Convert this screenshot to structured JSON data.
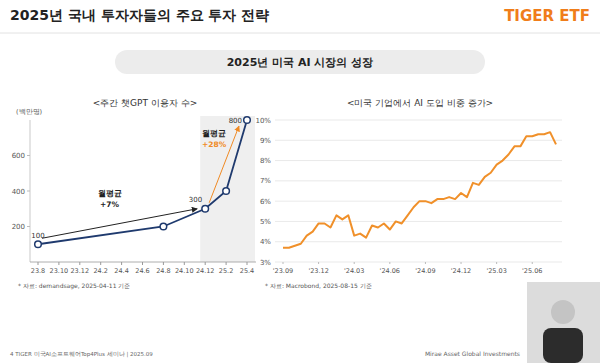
{
  "header": {
    "title": "2025년 국내 투자자들의 주요 투자 전략",
    "logo": "TIGER ETF"
  },
  "banner": "2025년 미국 AI 시장의 성장",
  "footer": {
    "left": "4 TIGER 미국AI소프트웨어Top4Plus 세미나 | 2025.09",
    "right": "Mirae Asset Global Investments"
  },
  "chart_data": [
    {
      "type": "line",
      "title": "<주간 챗GPT 이용자 수>",
      "y_label": "(백만명)",
      "source": "* 자료: demandsage, 2025-04-11 기준",
      "x": [
        "23.8",
        "24.8",
        "24.12",
        "25.2",
        "25.4"
      ],
      "values": [
        100,
        200,
        300,
        400,
        800
      ],
      "value_labels": [
        "100",
        null,
        "300",
        null,
        "800"
      ],
      "data_labels": true,
      "color": "#1f3a6e",
      "marker": "circle",
      "xlim": [
        "23.8",
        "25.4"
      ],
      "xticks": [
        "23.8",
        "23.10",
        "23.12",
        "24.2",
        "24.4",
        "24.6",
        "24.8",
        "24.10",
        "24.12",
        "25.2",
        "25.4"
      ],
      "ylim": [
        0,
        800
      ],
      "yticks": [
        200,
        400,
        600
      ],
      "grid": false,
      "highlight": {
        "from": "24.12",
        "to": "25.4"
      },
      "annotations": [
        {
          "label": "월평균",
          "text": "+7%",
          "from": "23.8",
          "to": "24.12",
          "color": "#222222"
        },
        {
          "label": "월평균",
          "text": "+28%",
          "from": "24.12",
          "to": "25.4",
          "color": "#f08a24"
        }
      ]
    },
    {
      "type": "line",
      "title": "<미국 기업에서 AI 도입 비중 증가>",
      "source": "* 자료: Macrobond, 2025-08-15 기준",
      "categories": [
        "'23.09",
        null,
        null,
        null,
        null,
        null,
        "'23.12",
        null,
        null,
        null,
        null,
        null,
        "'24.03",
        null,
        null,
        null,
        null,
        null,
        "'24.06",
        null,
        null,
        null,
        null,
        null,
        "'24.09",
        null,
        null,
        null,
        null,
        null,
        "'24.12",
        null,
        null,
        null,
        null,
        null,
        "'25.03",
        null,
        null,
        null,
        null,
        null,
        "'25.06",
        null,
        null,
        null,
        null
      ],
      "values": [
        3.7,
        3.7,
        3.8,
        3.9,
        4.3,
        4.5,
        4.9,
        4.9,
        4.7,
        5.3,
        5.1,
        5.3,
        4.3,
        4.4,
        4.2,
        4.8,
        4.7,
        4.9,
        4.6,
        5.0,
        4.9,
        5.3,
        5.7,
        6.0,
        6.0,
        5.9,
        6.1,
        6.1,
        6.2,
        6.1,
        6.4,
        6.2,
        6.9,
        6.8,
        7.2,
        7.4,
        7.8,
        8.0,
        8.3,
        8.7,
        8.7,
        9.2,
        9.2,
        9.3,
        9.3,
        9.4,
        8.8
      ],
      "color": "#f0902a",
      "ylim": [
        3,
        10
      ],
      "yticks": [
        {
          "value": 3,
          "label": "3%"
        },
        {
          "value": 4,
          "label": "4%"
        },
        {
          "value": 5,
          "label": "5%"
        },
        {
          "value": 6,
          "label": "6%"
        },
        {
          "value": 7,
          "label": "7%"
        },
        {
          "value": 8,
          "label": "8%"
        },
        {
          "value": 9,
          "label": "9%"
        },
        {
          "value": 10,
          "label": "10%"
        }
      ],
      "grid": true
    }
  ]
}
